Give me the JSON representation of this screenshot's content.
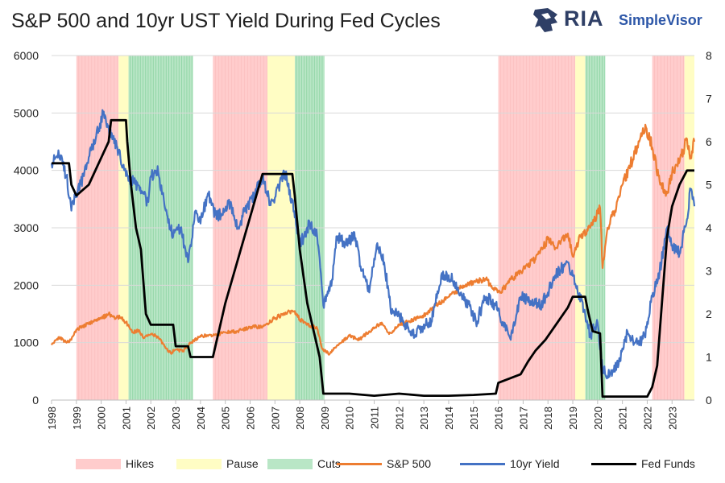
{
  "title": "S&P 500 and 10yr UST Yield During Fed Cycles",
  "logo": {
    "name": "RIA",
    "product": "SimpleVisor"
  },
  "colors": {
    "hikes": "#ffcccc",
    "pause": "#fffdc4",
    "cuts": "#b9e6c6",
    "cuts_line": "#74c98e",
    "sp500": "#ed7d31",
    "yield": "#4472c4",
    "fedfunds": "#000000"
  },
  "chart_data": {
    "type": "line",
    "title": "S&P 500 and 10yr UST Yield During Fed Cycles",
    "x_range": [
      1998.0,
      2023.9
    ],
    "x_ticks": [
      "1998",
      "1999",
      "2000",
      "2001",
      "2002",
      "2003",
      "2004",
      "2005",
      "2006",
      "2007",
      "2008",
      "2009",
      "2010",
      "2011",
      "2012",
      "2013",
      "2014",
      "2015",
      "2016",
      "2017",
      "2018",
      "2019",
      "2020",
      "2021",
      "2022",
      "2023"
    ],
    "left_axis": {
      "range": [
        0,
        6000
      ],
      "ticks": [
        "0",
        "1000",
        "2000",
        "3000",
        "4000",
        "5000",
        "6000"
      ]
    },
    "right_axis": {
      "range": [
        0,
        8
      ],
      "ticks": [
        "0",
        "1",
        "2",
        "3",
        "4",
        "5",
        "6",
        "7",
        "8"
      ]
    },
    "grid": "horizontal",
    "legend_position": "bottom",
    "regions": [
      {
        "type": "Hikes",
        "start": 1999.0,
        "end": 2000.7
      },
      {
        "type": "Pause",
        "start": 2000.7,
        "end": 2001.1
      },
      {
        "type": "Cuts",
        "start": 2001.1,
        "end": 2003.7
      },
      {
        "type": "Hikes",
        "start": 2004.5,
        "end": 2006.7
      },
      {
        "type": "Pause",
        "start": 2006.7,
        "end": 2007.8
      },
      {
        "type": "Cuts",
        "start": 2007.8,
        "end": 2009.0
      },
      {
        "type": "Hikes",
        "start": 2016.0,
        "end": 2019.1
      },
      {
        "type": "Pause",
        "start": 2019.1,
        "end": 2019.5
      },
      {
        "type": "Cuts",
        "start": 2019.5,
        "end": 2020.3
      },
      {
        "type": "Hikes",
        "start": 2022.2,
        "end": 2023.5
      },
      {
        "type": "Pause",
        "start": 2023.5,
        "end": 2023.9
      }
    ],
    "series": [
      {
        "name": "S&P 500",
        "axis": "left",
        "points": [
          [
            1998.0,
            960
          ],
          [
            1998.3,
            1100
          ],
          [
            1998.6,
            1000
          ],
          [
            1998.8,
            1050
          ],
          [
            1999.0,
            1230
          ],
          [
            1999.5,
            1330
          ],
          [
            2000.0,
            1420
          ],
          [
            2000.3,
            1500
          ],
          [
            2000.5,
            1450
          ],
          [
            2000.8,
            1440
          ],
          [
            2001.0,
            1350
          ],
          [
            2001.3,
            1180
          ],
          [
            2001.5,
            1220
          ],
          [
            2001.7,
            1080
          ],
          [
            2002.0,
            1150
          ],
          [
            2002.3,
            1100
          ],
          [
            2002.6,
            900
          ],
          [
            2002.8,
            820
          ],
          [
            2003.0,
            880
          ],
          [
            2003.3,
            850
          ],
          [
            2003.6,
            990
          ],
          [
            2004.0,
            1120
          ],
          [
            2004.5,
            1120
          ],
          [
            2005.0,
            1180
          ],
          [
            2005.5,
            1200
          ],
          [
            2006.0,
            1270
          ],
          [
            2006.5,
            1280
          ],
          [
            2007.0,
            1430
          ],
          [
            2007.5,
            1520
          ],
          [
            2007.8,
            1550
          ],
          [
            2008.0,
            1400
          ],
          [
            2008.4,
            1300
          ],
          [
            2008.7,
            1250
          ],
          [
            2008.9,
            900
          ],
          [
            2009.2,
            800
          ],
          [
            2009.5,
            950
          ],
          [
            2010.0,
            1120
          ],
          [
            2010.4,
            1050
          ],
          [
            2010.8,
            1200
          ],
          [
            2011.3,
            1350
          ],
          [
            2011.6,
            1150
          ],
          [
            2012.0,
            1300
          ],
          [
            2012.4,
            1380
          ],
          [
            2012.8,
            1440
          ],
          [
            2013.0,
            1480
          ],
          [
            2013.5,
            1650
          ],
          [
            2014.0,
            1800
          ],
          [
            2014.5,
            1960
          ],
          [
            2015.0,
            2050
          ],
          [
            2015.5,
            2100
          ],
          [
            2015.8,
            1950
          ],
          [
            2016.1,
            1880
          ],
          [
            2016.5,
            2100
          ],
          [
            2017.0,
            2280
          ],
          [
            2017.5,
            2450
          ],
          [
            2018.0,
            2800
          ],
          [
            2018.3,
            2650
          ],
          [
            2018.8,
            2900
          ],
          [
            2019.0,
            2500
          ],
          [
            2019.3,
            2850
          ],
          [
            2019.6,
            2950
          ],
          [
            2020.0,
            3250
          ],
          [
            2020.1,
            3350
          ],
          [
            2020.2,
            2300
          ],
          [
            2020.4,
            3000
          ],
          [
            2020.7,
            3300
          ],
          [
            2021.0,
            3750
          ],
          [
            2021.5,
            4300
          ],
          [
            2021.95,
            4750
          ],
          [
            2022.2,
            4400
          ],
          [
            2022.5,
            3800
          ],
          [
            2022.8,
            3600
          ],
          [
            2023.0,
            3950
          ],
          [
            2023.3,
            4150
          ],
          [
            2023.5,
            4400
          ],
          [
            2023.6,
            4550
          ],
          [
            2023.75,
            4250
          ],
          [
            2023.9,
            4500
          ]
        ]
      },
      {
        "name": "10yr Yield",
        "axis": "right",
        "points": [
          [
            1998.0,
            5.5
          ],
          [
            1998.3,
            5.7
          ],
          [
            1998.6,
            5.2
          ],
          [
            1998.8,
            4.4
          ],
          [
            1999.0,
            4.8
          ],
          [
            1999.3,
            5.2
          ],
          [
            1999.6,
            5.8
          ],
          [
            1999.9,
            6.3
          ],
          [
            2000.1,
            6.7
          ],
          [
            2000.4,
            6.1
          ],
          [
            2000.7,
            5.8
          ],
          [
            2001.0,
            5.2
          ],
          [
            2001.3,
            5.1
          ],
          [
            2001.6,
            4.8
          ],
          [
            2001.9,
            4.6
          ],
          [
            2002.0,
            5.2
          ],
          [
            2002.3,
            5.3
          ],
          [
            2002.6,
            4.4
          ],
          [
            2002.9,
            3.8
          ],
          [
            2003.2,
            4.0
          ],
          [
            2003.5,
            3.2
          ],
          [
            2003.8,
            4.4
          ],
          [
            2004.0,
            4.1
          ],
          [
            2004.3,
            4.8
          ],
          [
            2004.6,
            4.3
          ],
          [
            2004.9,
            4.3
          ],
          [
            2005.2,
            4.6
          ],
          [
            2005.5,
            4.0
          ],
          [
            2005.8,
            4.4
          ],
          [
            2006.2,
            4.8
          ],
          [
            2006.5,
            5.2
          ],
          [
            2006.8,
            4.6
          ],
          [
            2007.0,
            4.7
          ],
          [
            2007.4,
            5.3
          ],
          [
            2007.7,
            4.6
          ],
          [
            2008.0,
            3.6
          ],
          [
            2008.4,
            4.1
          ],
          [
            2008.7,
            3.8
          ],
          [
            2008.95,
            2.2
          ],
          [
            2009.3,
            2.8
          ],
          [
            2009.5,
            3.8
          ],
          [
            2009.9,
            3.6
          ],
          [
            2010.2,
            3.9
          ],
          [
            2010.5,
            3.0
          ],
          [
            2010.8,
            2.5
          ],
          [
            2011.1,
            3.6
          ],
          [
            2011.4,
            3.2
          ],
          [
            2011.7,
            2.0
          ],
          [
            2012.0,
            2.0
          ],
          [
            2012.5,
            1.5
          ],
          [
            2012.9,
            1.7
          ],
          [
            2013.3,
            1.8
          ],
          [
            2013.7,
            2.9
          ],
          [
            2014.0,
            2.9
          ],
          [
            2014.5,
            2.5
          ],
          [
            2014.9,
            2.1
          ],
          [
            2015.1,
            1.8
          ],
          [
            2015.5,
            2.4
          ],
          [
            2015.9,
            2.2
          ],
          [
            2016.2,
            1.8
          ],
          [
            2016.5,
            1.4
          ],
          [
            2016.9,
            2.4
          ],
          [
            2017.3,
            2.3
          ],
          [
            2017.7,
            2.2
          ],
          [
            2018.0,
            2.5
          ],
          [
            2018.3,
            2.9
          ],
          [
            2018.8,
            3.2
          ],
          [
            2019.1,
            2.7
          ],
          [
            2019.5,
            2.0
          ],
          [
            2019.7,
            1.5
          ],
          [
            2020.0,
            1.8
          ],
          [
            2020.2,
            0.7
          ],
          [
            2020.5,
            0.6
          ],
          [
            2020.9,
            0.9
          ],
          [
            2021.2,
            1.6
          ],
          [
            2021.6,
            1.3
          ],
          [
            2021.9,
            1.5
          ],
          [
            2022.2,
            2.4
          ],
          [
            2022.5,
            3.0
          ],
          [
            2022.8,
            4.0
          ],
          [
            2023.0,
            3.6
          ],
          [
            2023.3,
            3.4
          ],
          [
            2023.6,
            4.2
          ],
          [
            2023.75,
            4.9
          ],
          [
            2023.9,
            4.5
          ]
        ]
      },
      {
        "name": "Fed Funds",
        "axis": "right",
        "points": [
          [
            1998.0,
            5.5
          ],
          [
            1998.7,
            5.5
          ],
          [
            1998.8,
            5.0
          ],
          [
            1999.0,
            4.75
          ],
          [
            1999.5,
            5.0
          ],
          [
            1999.9,
            5.5
          ],
          [
            2000.3,
            6.0
          ],
          [
            2000.4,
            6.5
          ],
          [
            2001.0,
            6.5
          ],
          [
            2001.05,
            6.0
          ],
          [
            2001.2,
            5.0
          ],
          [
            2001.4,
            4.0
          ],
          [
            2001.6,
            3.5
          ],
          [
            2001.8,
            2.0
          ],
          [
            2002.0,
            1.75
          ],
          [
            2002.9,
            1.75
          ],
          [
            2003.0,
            1.25
          ],
          [
            2003.5,
            1.25
          ],
          [
            2003.6,
            1.0
          ],
          [
            2004.5,
            1.0
          ],
          [
            2005.0,
            2.25
          ],
          [
            2005.5,
            3.25
          ],
          [
            2006.0,
            4.25
          ],
          [
            2006.5,
            5.25
          ],
          [
            2007.7,
            5.25
          ],
          [
            2007.8,
            4.75
          ],
          [
            2008.0,
            3.5
          ],
          [
            2008.3,
            2.25
          ],
          [
            2008.8,
            1.0
          ],
          [
            2008.95,
            0.15
          ],
          [
            2010.0,
            0.15
          ],
          [
            2011.0,
            0.1
          ],
          [
            2012.0,
            0.15
          ],
          [
            2013.0,
            0.1
          ],
          [
            2014.0,
            0.1
          ],
          [
            2015.0,
            0.12
          ],
          [
            2015.9,
            0.15
          ],
          [
            2016.0,
            0.4
          ],
          [
            2016.9,
            0.6
          ],
          [
            2017.2,
            0.9
          ],
          [
            2017.5,
            1.15
          ],
          [
            2017.9,
            1.4
          ],
          [
            2018.2,
            1.65
          ],
          [
            2018.5,
            1.9
          ],
          [
            2018.8,
            2.15
          ],
          [
            2019.0,
            2.4
          ],
          [
            2019.5,
            2.4
          ],
          [
            2019.6,
            2.1
          ],
          [
            2019.8,
            1.6
          ],
          [
            2020.1,
            1.55
          ],
          [
            2020.2,
            0.08
          ],
          [
            2022.0,
            0.08
          ],
          [
            2022.2,
            0.3
          ],
          [
            2022.4,
            0.8
          ],
          [
            2022.6,
            2.3
          ],
          [
            2022.8,
            3.8
          ],
          [
            2023.0,
            4.5
          ],
          [
            2023.3,
            5.0
          ],
          [
            2023.6,
            5.33
          ],
          [
            2023.9,
            5.33
          ]
        ]
      }
    ]
  },
  "legend": {
    "hikes": "Hikes",
    "pause": "Pause",
    "cuts": "Cuts",
    "sp500": "S&P 500",
    "yield": "10yr Yield",
    "fedfunds": "Fed Funds"
  }
}
